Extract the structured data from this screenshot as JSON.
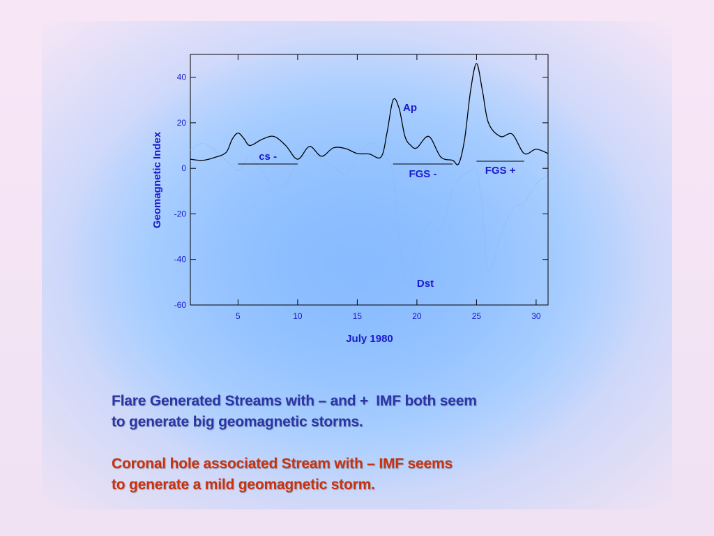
{
  "chart_data": {
    "type": "line",
    "xlabel": "July 1980",
    "ylabel": "Geomagnetic Index",
    "xlim": [
      1,
      31
    ],
    "ylim": [
      -60,
      50
    ],
    "xticks": [
      5,
      10,
      15,
      20,
      25,
      30
    ],
    "yticks": [
      -60,
      -40,
      -20,
      0,
      20,
      40
    ],
    "x": [
      1,
      2,
      3,
      4,
      4.5,
      5,
      5.5,
      6,
      7,
      8,
      9,
      10,
      11,
      12,
      13,
      14,
      15,
      16,
      17,
      17.5,
      18,
      18.5,
      19,
      19.5,
      20,
      21,
      22,
      23,
      23.5,
      24,
      24.5,
      25,
      25.5,
      26,
      27,
      28,
      29,
      30,
      31
    ],
    "series": [
      {
        "name": "Ap",
        "color": "#000000",
        "style": "solid",
        "values": [
          4,
          3.5,
          4.7,
          7,
          12.7,
          15.5,
          13,
          10,
          12.7,
          14,
          10,
          4,
          9.6,
          5.3,
          9,
          8.7,
          6.5,
          6.3,
          5,
          15.8,
          30,
          26.5,
          14,
          10,
          9,
          14,
          5,
          3.5,
          2,
          12.7,
          34,
          46,
          34,
          20,
          14,
          15,
          6.5,
          8.4,
          6.5
        ]
      },
      {
        "name": "Dst",
        "color": "#8fb4e8",
        "style": "dotted",
        "values": [
          8,
          11,
          8,
          3.5,
          1,
          -1,
          2,
          5,
          -1,
          -8,
          -7,
          3,
          6,
          4,
          0.5,
          -2.6,
          5,
          11,
          8,
          4,
          -2.6,
          -30,
          -48.6,
          -48.6,
          -36,
          -24,
          -27,
          -9,
          -5,
          -2.6,
          -1,
          -1,
          -18,
          -45.6,
          -30,
          -18,
          -15,
          -7,
          -2.6
        ]
      }
    ],
    "periods": [
      {
        "label": "cs -",
        "start": 5,
        "end": 10
      },
      {
        "label": "FGS -",
        "start": 18,
        "end": 23
      },
      {
        "label": "FGS +",
        "start": 25,
        "end": 29
      }
    ]
  },
  "notes": [
    {
      "color": "#2b35a8",
      "lines": [
        "Flare Generated Streams with – and +  IMF both seem",
        "to generate big geomagnetic storms."
      ]
    },
    {
      "color": "#c8320e",
      "lines": [
        "Coronal hole associated Stream with – IMF seems",
        "to generate a mild geomagnetic storm."
      ]
    }
  ]
}
